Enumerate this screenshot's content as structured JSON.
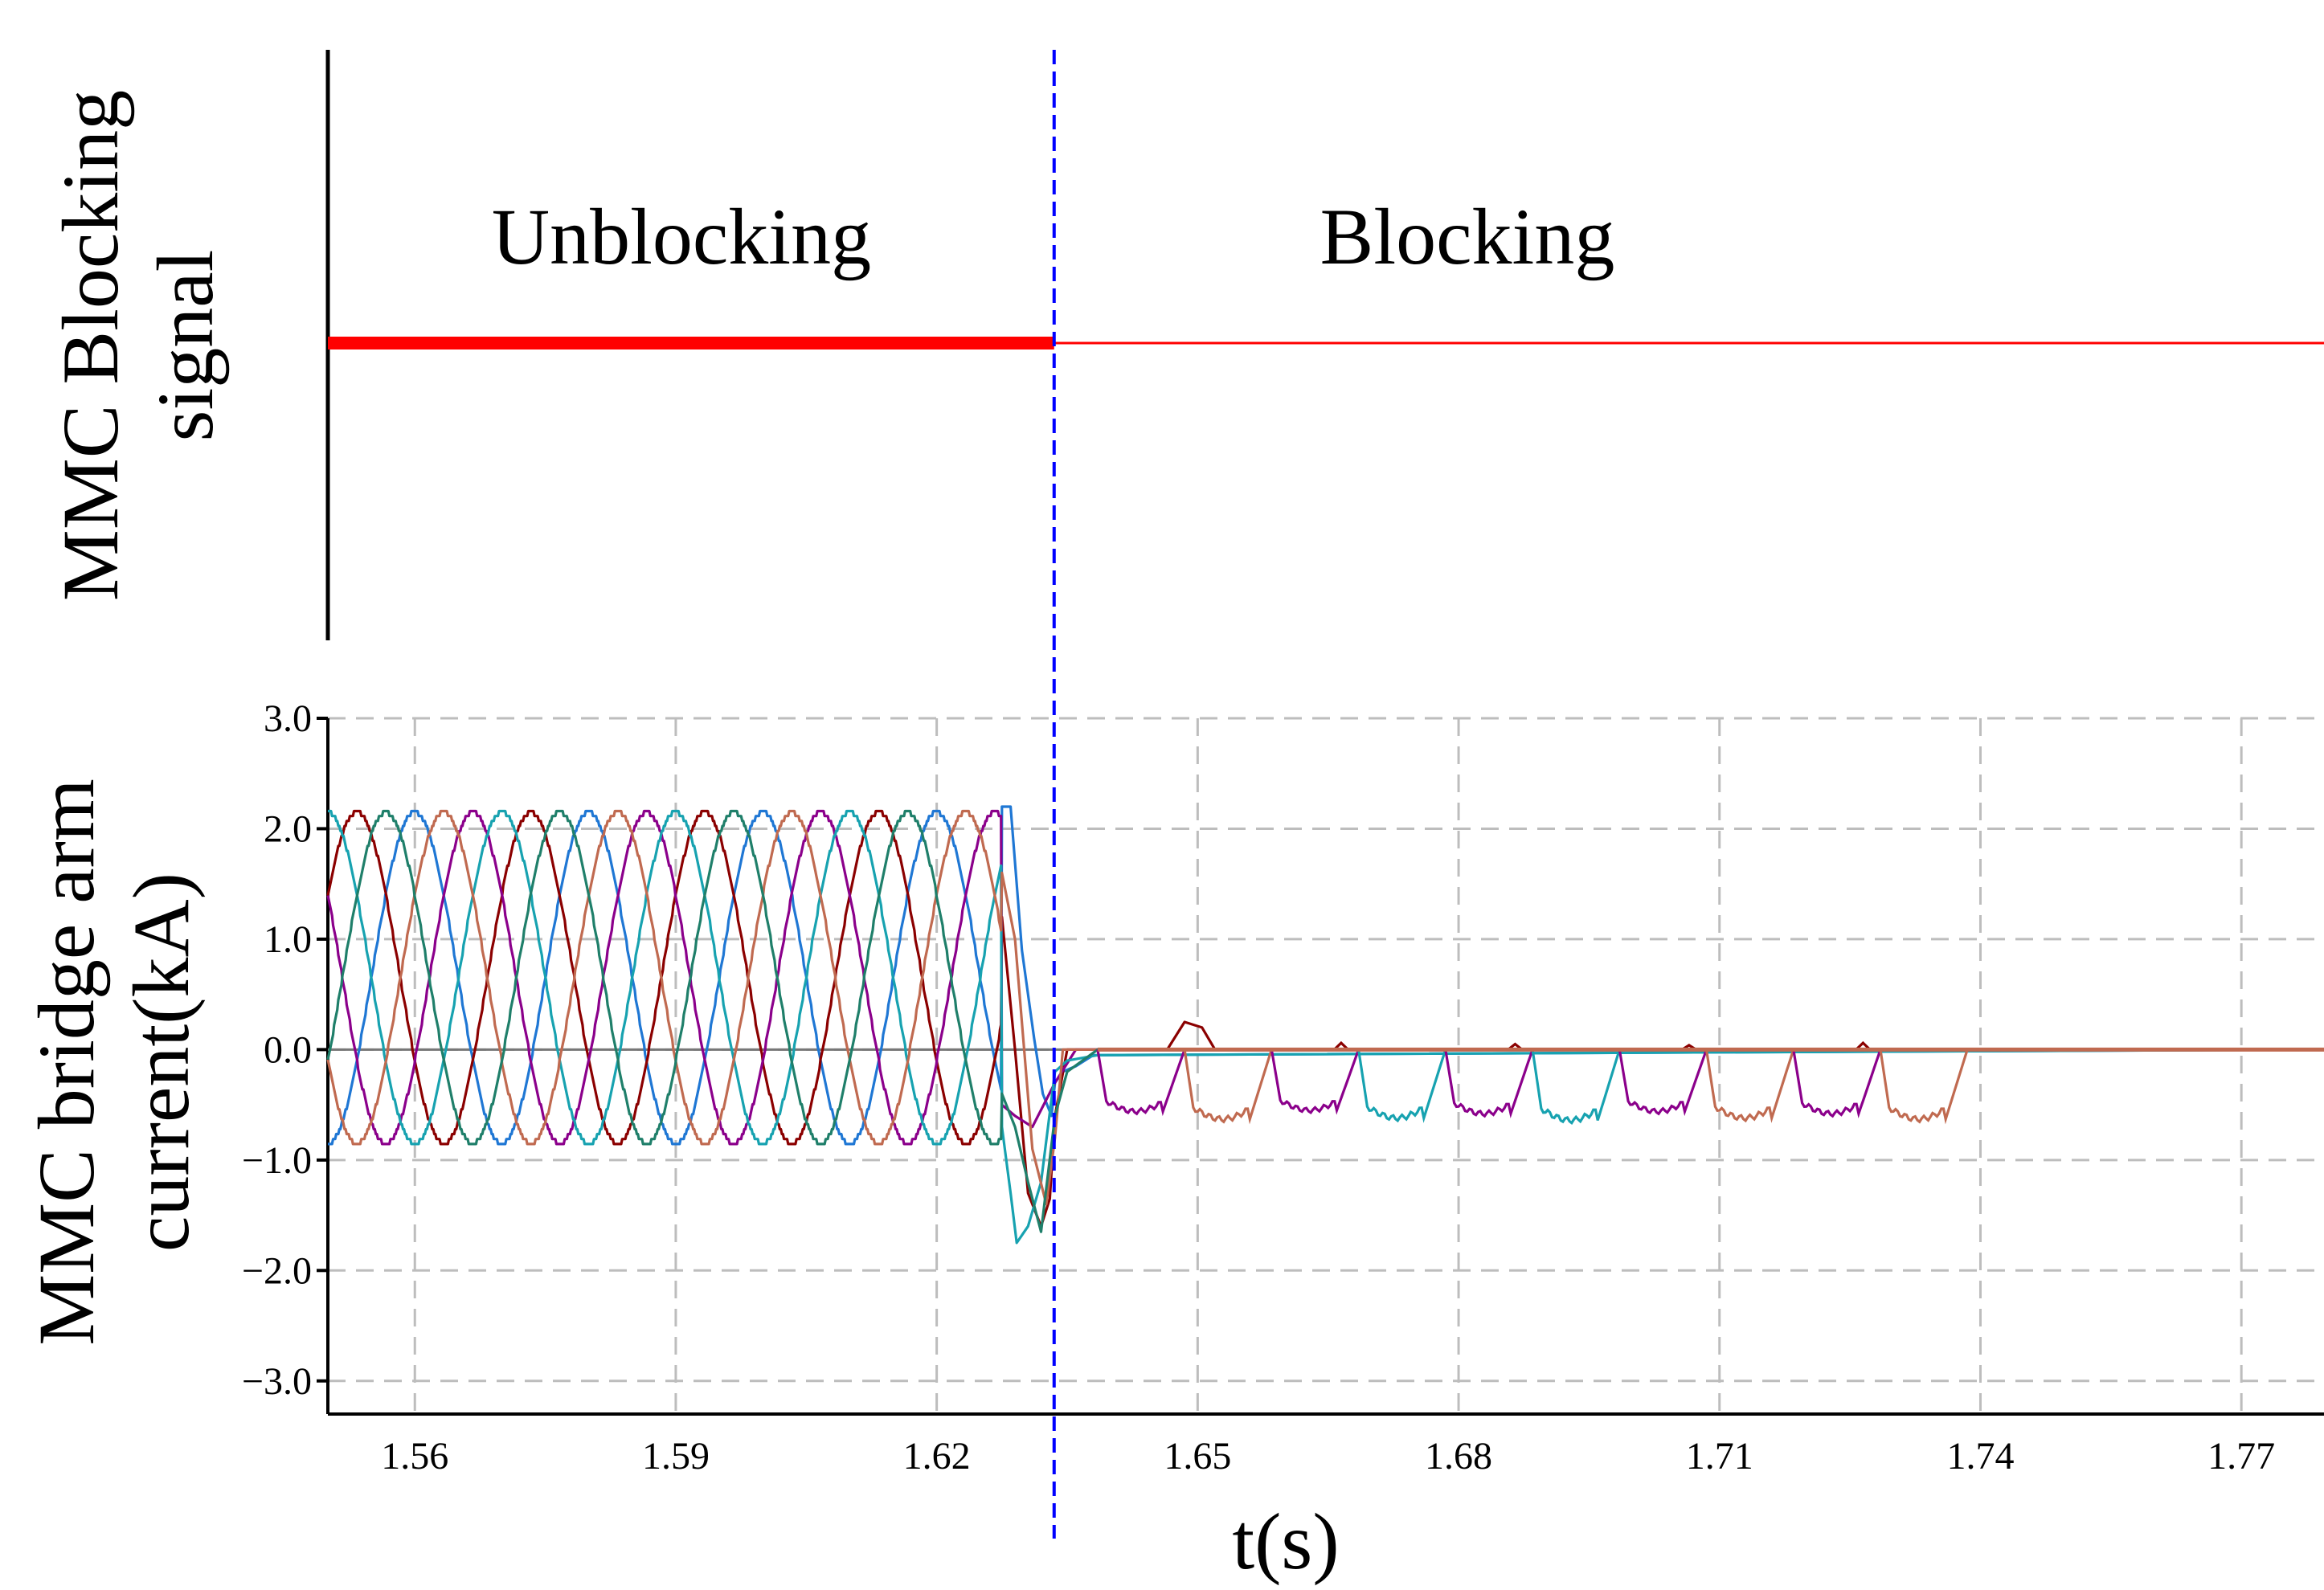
{
  "chart_data": [
    {
      "type": "line",
      "title": "",
      "ylabel_line1": "MMC Blocking",
      "ylabel_line2": "signal",
      "state_labels": [
        "Unblocking",
        "Blocking"
      ],
      "blocking_time": 1.6335,
      "xlim": [
        1.55,
        1.7795
      ],
      "series": [
        {
          "color": "#ff0000",
          "x": [
            1.55,
            1.6335
          ],
          "values": [
            1,
            1
          ],
          "style": "thick"
        },
        {
          "color": "#ff0000",
          "x": [
            1.6335,
            1.7795
          ],
          "values": [
            1,
            1
          ],
          "style": "thin"
        }
      ]
    },
    {
      "type": "line",
      "title": "",
      "xlabel": "t(s)",
      "ylabel_line1": "MMC bridge arm",
      "ylabel_line2": "current(kA)",
      "xlim": [
        1.55,
        1.7795
      ],
      "ylim": [
        -3.3,
        3.0
      ],
      "x_ticks": [
        1.56,
        1.59,
        1.62,
        1.65,
        1.68,
        1.71,
        1.74,
        1.77
      ],
      "x_tick_labels": [
        "1.56",
        "1.59",
        "1.62",
        "1.65",
        "1.68",
        "1.71",
        "1.74",
        "1.77"
      ],
      "y_ticks": [
        3.0,
        2.0,
        1.0,
        0.0,
        -1.0,
        -2.0,
        -3.0
      ],
      "y_tick_labels": [
        "3.0",
        "2.0",
        "1.0",
        "0.0",
        "−1.0",
        "−2.0",
        "−3.0"
      ],
      "grid": true,
      "blocking_time": 1.6335,
      "blocking_line_color": "#0000ff",
      "steady_state": {
        "amplitude": 1.5,
        "offset": 0.65,
        "frequency_hz": 50,
        "unit": "kA"
      },
      "series": [
        {
          "color": "#1f77d4",
          "steady_phase_deg": 90,
          "transient": {
            "x": [
              1.6275,
              1.6285,
              1.6298,
              1.6312,
              1.6322,
              1.6332,
              1.6336,
              1.6345,
              1.636,
              1.638,
              1.7795
            ],
            "values": [
              2.2,
              2.2,
              0.9,
              0.1,
              -0.4,
              -0.6,
              -0.3,
              -0.2,
              -0.15,
              -0.05,
              0.0
            ]
          }
        },
        {
          "color": "#8b0000",
          "steady_phase_deg": 210,
          "transient": {
            "x": [
              1.6275,
              1.629,
              1.6305,
              1.632,
              1.633,
              1.6336,
              1.635,
              1.6465,
              1.6485,
              1.6505,
              1.652,
              1.7795
            ],
            "values": [
              1.2,
              0.0,
              -1.3,
              -1.6,
              -1.35,
              -0.6,
              0.0,
              0.0,
              0.25,
              0.2,
              0.0,
              0.0
            ]
          }
        },
        {
          "color": "#8b008b",
          "steady_phase_deg": 330,
          "transient": {
            "x": [
              1.6275,
              1.629,
              1.631,
              1.6336,
              1.636,
              1.7795
            ],
            "values": [
              -0.5,
              -0.6,
              -0.7,
              -0.3,
              0.0,
              0.0
            ]
          }
        },
        {
          "color": "#17a2b0",
          "steady_phase_deg": 270,
          "transient": {
            "x": [
              1.6275,
              1.6285,
              1.6292,
              1.6305,
              1.632,
              1.6336,
              1.635,
              1.6385,
              1.7795
            ],
            "values": [
              -0.7,
              -1.3,
              -1.75,
              -1.6,
              -1.2,
              -0.2,
              -0.1,
              -0.05,
              0.0
            ]
          }
        },
        {
          "color": "#c06a50",
          "steady_phase_deg": 30,
          "transient": {
            "x": [
              1.6275,
              1.629,
              1.631,
              1.6326,
              1.6336,
              1.6345,
              1.7795
            ],
            "values": [
              1.6,
              1.0,
              -0.9,
              -1.4,
              -0.8,
              0.0,
              0.0
            ]
          }
        },
        {
          "color": "#1f7f6a",
          "steady_phase_deg": 150,
          "transient": {
            "x": [
              1.6275,
              1.629,
              1.6305,
              1.632,
              1.6336,
              1.635,
              1.6385,
              1.7795
            ],
            "values": [
              -0.4,
              -0.7,
              -1.2,
              -1.65,
              -0.6,
              -0.2,
              0.0,
              0.0
            ]
          }
        }
      ],
      "post_block_pulses": {
        "start": 1.6385,
        "end": 1.7355,
        "period": 0.01,
        "values": [
          -0.56,
          -0.63,
          -0.55,
          -0.62,
          -0.58,
          -0.64,
          -0.56,
          -0.62,
          -0.58,
          -0.63
        ],
        "colors": [
          "#8b008b",
          "#c06a50",
          "#8b008b",
          "#17a2b0",
          "#8b008b",
          "#17a2b0",
          "#8b008b",
          "#c06a50",
          "#8b008b",
          "#c06a50"
        ]
      },
      "small_blips": {
        "x": [
          1.6665,
          1.6865,
          1.7065,
          1.7265
        ],
        "values": [
          0.06,
          0.05,
          0.04,
          0.06
        ],
        "color": "#8b0000"
      }
    }
  ]
}
